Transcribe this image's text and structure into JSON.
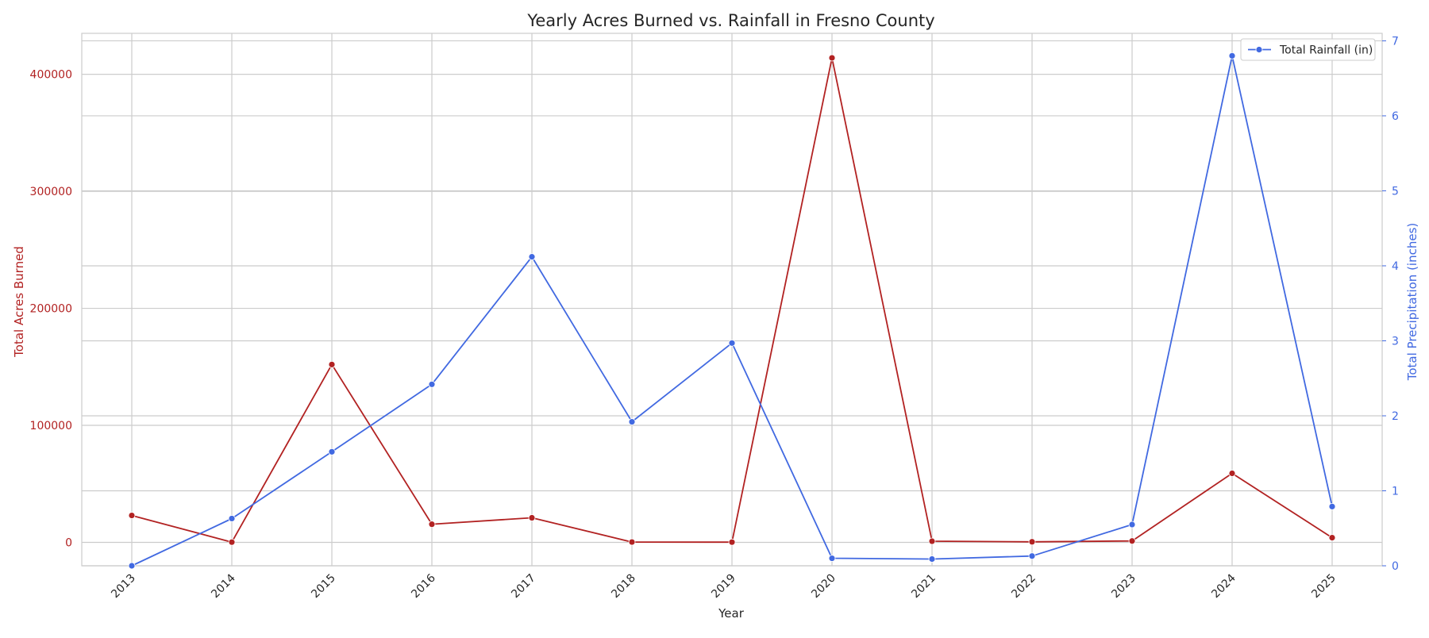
{
  "chart_data": {
    "type": "line",
    "title": "Yearly Acres Burned vs. Rainfall in Fresno County",
    "xlabel": "Year",
    "ylabel_left": "Total Acres Burned",
    "ylabel_right": "Total Precipitation (inches)",
    "x": [
      "2013",
      "2014",
      "2015",
      "2016",
      "2017",
      "2018",
      "2019",
      "2020",
      "2021",
      "2022",
      "2023",
      "2024",
      "2025"
    ],
    "ylim_left": [
      -20000,
      435000
    ],
    "ylim_right": [
      0,
      7.1
    ],
    "yticks_left": [
      0,
      100000,
      200000,
      300000,
      400000
    ],
    "yticks_right": [
      0,
      1,
      2,
      3,
      4,
      5,
      6,
      7
    ],
    "grid": true,
    "legend_placement": "top-right",
    "series": [
      {
        "name": "",
        "axis": "left",
        "color": "#b22222",
        "values": [
          23000,
          200,
          152000,
          15500,
          21000,
          300,
          200,
          414000,
          1000,
          500,
          1200,
          59000,
          4000
        ]
      },
      {
        "name": "Total Rainfall (in)",
        "axis": "right",
        "color": "#4169e1",
        "values": [
          0.0,
          0.63,
          1.52,
          2.42,
          4.12,
          1.92,
          2.97,
          0.1,
          0.09,
          0.13,
          0.55,
          6.8,
          0.79
        ]
      }
    ]
  },
  "colors": {
    "acres": "#b22222",
    "rain": "#4169e1",
    "grid": "#cccccc",
    "axis": "#cccccc",
    "text": "#262626"
  }
}
